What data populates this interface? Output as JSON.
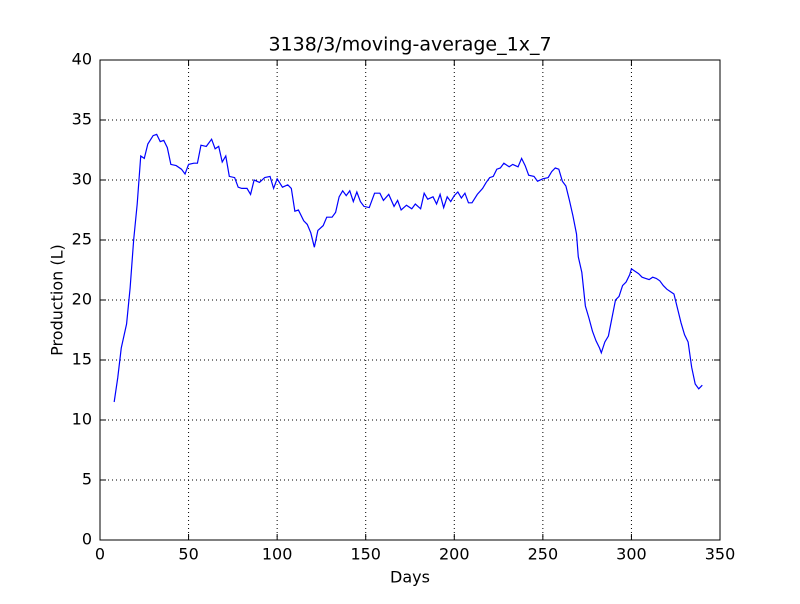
{
  "chart_data": {
    "type": "line",
    "title": "3138/3/moving-average_1x_7",
    "x_label": "Days",
    "y_label": "Production (L)",
    "xlim": [
      0,
      350
    ],
    "xticks": [
      0,
      50,
      100,
      150,
      200,
      250,
      300,
      350
    ],
    "ylim": [
      0,
      40
    ],
    "yticks": [
      0,
      5,
      10,
      15,
      20,
      25,
      30,
      35,
      40
    ],
    "grid": true,
    "series": [
      {
        "color": "#0000ff",
        "x": [
          8,
          10,
          12,
          15,
          17,
          19,
          21,
          23,
          25,
          27,
          30,
          32,
          34,
          36,
          38,
          40,
          43,
          46,
          48,
          50,
          53,
          55,
          57,
          60,
          63,
          65,
          67,
          69,
          71,
          73,
          76,
          78,
          80,
          83,
          85,
          87,
          90,
          93,
          96,
          98,
          100,
          103,
          106,
          108,
          110,
          112,
          115,
          117,
          119,
          121,
          123,
          126,
          128,
          131,
          133,
          135,
          137,
          139,
          141,
          143,
          145,
          147,
          149,
          152,
          155,
          158,
          160,
          163,
          166,
          168,
          170,
          173,
          176,
          178,
          181,
          183,
          185,
          188,
          190,
          192,
          194,
          196,
          198,
          200,
          202,
          204,
          206,
          208,
          210,
          213,
          216,
          218,
          220,
          222,
          224,
          226,
          228,
          231,
          233,
          236,
          238,
          240,
          242,
          245,
          247,
          250,
          253,
          255,
          257,
          259,
          261,
          263,
          265,
          267,
          269,
          270,
          272,
          274,
          276,
          278,
          280,
          282,
          283,
          285,
          287,
          289,
          291,
          293,
          295,
          297,
          299,
          300,
          302,
          304,
          306,
          308,
          310,
          312,
          314,
          316,
          318,
          320,
          322,
          324,
          326,
          328,
          330,
          332,
          334,
          336,
          338,
          340
        ],
        "values": [
          11.5,
          13.5,
          16,
          18,
          21,
          25,
          28,
          32,
          31.8,
          33,
          33.7,
          33.8,
          33.2,
          33.3,
          32.7,
          31.3,
          31.2,
          30.9,
          30.5,
          31.3,
          31.4,
          31.4,
          32.9,
          32.8,
          33.4,
          32.6,
          32.8,
          31.5,
          32,
          30.3,
          30.2,
          29.4,
          29.3,
          29.3,
          28.8,
          30,
          29.8,
          30.2,
          30.3,
          29.3,
          30.1,
          29.4,
          29.6,
          29.3,
          27.4,
          27.5,
          26.6,
          26.3,
          25.6,
          24.4,
          25.8,
          26.2,
          26.9,
          26.9,
          27.3,
          28.6,
          29.1,
          28.7,
          29.1,
          28.2,
          29,
          28.2,
          27.8,
          27.7,
          28.9,
          28.9,
          28.3,
          28.8,
          27.8,
          28.3,
          27.5,
          27.9,
          27.6,
          28,
          27.6,
          28.9,
          28.4,
          28.6,
          28,
          28.8,
          27.7,
          28.6,
          28.2,
          28.7,
          29,
          28.5,
          28.9,
          28.1,
          28.1,
          28.8,
          29.3,
          29.8,
          30.2,
          30.3,
          30.9,
          31,
          31.4,
          31.1,
          31.3,
          31.1,
          31.8,
          31.2,
          30.4,
          30.3,
          29.9,
          30.1,
          30.2,
          30.7,
          31,
          30.9,
          29.9,
          29.5,
          28.3,
          27,
          25.5,
          23.6,
          22.3,
          19.5,
          18.5,
          17.4,
          16.6,
          16,
          15.6,
          16.5,
          17,
          18.5,
          20,
          20.3,
          21.2,
          21.5,
          22.1,
          22.6,
          22.4,
          22.2,
          21.9,
          21.8,
          21.7,
          21.9,
          21.8,
          21.6,
          21.2,
          20.9,
          20.7,
          20.5,
          19.3,
          18.1,
          17.1,
          16.5,
          14.4,
          13,
          12.6,
          12.9
        ]
      }
    ]
  }
}
